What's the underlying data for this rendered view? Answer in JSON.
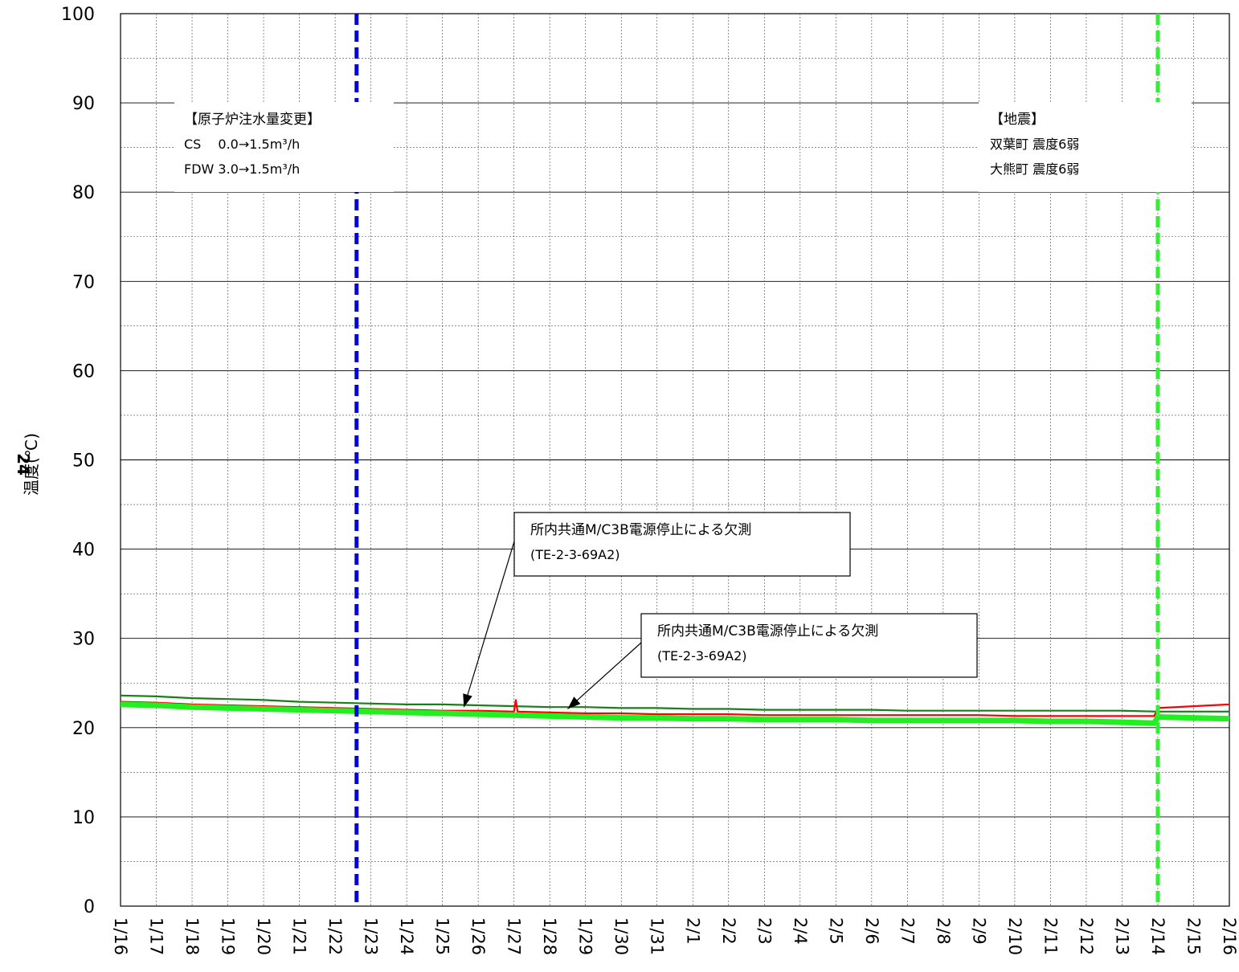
{
  "chart_data": {
    "type": "line",
    "ylabel_top": "24",
    "ylabel": "温度(℃)",
    "ylim": [
      0,
      100
    ],
    "y_major_ticks": [
      0,
      10,
      20,
      30,
      40,
      50,
      60,
      70,
      80,
      90,
      100
    ],
    "x_tick_labels": [
      "1/16",
      "1/17",
      "1/18",
      "1/19",
      "1/20",
      "1/21",
      "1/22",
      "1/23",
      "1/24",
      "1/25",
      "1/26",
      "1/27",
      "1/28",
      "1/29",
      "1/30",
      "1/31",
      "2/1",
      "2/2",
      "2/3",
      "2/4",
      "2/5",
      "2/6",
      "2/7",
      "2/8",
      "2/9",
      "2/10",
      "2/11",
      "2/12",
      "2/13",
      "2/14",
      "2/15",
      "2/16"
    ],
    "xlim_days": [
      0,
      31
    ],
    "grid": true,
    "series": [
      {
        "color": "#1a7f1a",
        "style": "thin",
        "points": [
          [
            0,
            23.6
          ],
          [
            1,
            23.5
          ],
          [
            2,
            23.3
          ],
          [
            3,
            23.2
          ],
          [
            4,
            23.1
          ],
          [
            5,
            22.9
          ],
          [
            6,
            22.8
          ],
          [
            7,
            22.7
          ],
          [
            8,
            22.6
          ],
          [
            9,
            22.6
          ],
          [
            10,
            22.5
          ],
          [
            11,
            22.4
          ],
          [
            12,
            22.3
          ],
          [
            13,
            22.3
          ],
          [
            14,
            22.2
          ],
          [
            15,
            22.2
          ],
          [
            16,
            22.1
          ],
          [
            17,
            22.1
          ],
          [
            18,
            22.0
          ],
          [
            19,
            22.0
          ],
          [
            20,
            22.0
          ],
          [
            21,
            22.0
          ],
          [
            22,
            21.9
          ],
          [
            23,
            21.9
          ],
          [
            24,
            21.9
          ],
          [
            25,
            21.9
          ],
          [
            26,
            21.9
          ],
          [
            27,
            21.9
          ],
          [
            28,
            21.9
          ],
          [
            29,
            21.8
          ],
          [
            30,
            21.8
          ],
          [
            31,
            21.8
          ]
        ]
      },
      {
        "color": "#ff0000",
        "style": "thin",
        "points": [
          [
            0,
            22.9
          ],
          [
            1,
            22.8
          ],
          [
            2,
            22.6
          ],
          [
            3,
            22.5
          ],
          [
            4,
            22.4
          ],
          [
            5,
            22.3
          ],
          [
            6,
            22.2
          ],
          [
            7,
            22.1
          ],
          [
            8,
            22.0
          ],
          [
            9,
            21.9
          ],
          [
            10,
            21.9
          ],
          [
            11,
            21.8
          ],
          [
            11.05,
            23.1
          ],
          [
            11.1,
            21.8
          ],
          [
            12,
            21.7
          ],
          [
            13,
            21.6
          ],
          [
            14,
            21.6
          ],
          [
            15,
            21.5
          ],
          [
            16,
            21.5
          ],
          [
            17,
            21.5
          ],
          [
            18,
            21.4
          ],
          [
            19,
            21.4
          ],
          [
            20,
            21.4
          ],
          [
            21,
            21.4
          ],
          [
            22,
            21.4
          ],
          [
            23,
            21.4
          ],
          [
            24,
            21.4
          ],
          [
            25,
            21.3
          ],
          [
            26,
            21.3
          ],
          [
            27,
            21.3
          ],
          [
            28,
            21.3
          ],
          [
            28.9,
            21.3
          ],
          [
            29,
            22.2
          ],
          [
            30,
            22.4
          ],
          [
            31,
            22.6
          ]
        ]
      },
      {
        "color": "#22ee22",
        "style": "thick",
        "points": [
          [
            0,
            22.6
          ],
          [
            1,
            22.5
          ],
          [
            2,
            22.3
          ],
          [
            3,
            22.2
          ],
          [
            4,
            22.1
          ],
          [
            5,
            22.0
          ],
          [
            6,
            21.9
          ],
          [
            7,
            21.8
          ],
          [
            8,
            21.7
          ],
          [
            9,
            21.6
          ],
          [
            10,
            21.5
          ],
          [
            11,
            21.4
          ],
          [
            12,
            21.3
          ],
          [
            13,
            21.2
          ],
          [
            14,
            21.1
          ],
          [
            15,
            21.1
          ],
          [
            16,
            21.0
          ],
          [
            17,
            21.0
          ],
          [
            18,
            20.9
          ],
          [
            19,
            20.9
          ],
          [
            20,
            20.9
          ],
          [
            21,
            20.8
          ],
          [
            22,
            20.8
          ],
          [
            23,
            20.8
          ],
          [
            24,
            20.8
          ],
          [
            25,
            20.8
          ],
          [
            26,
            20.7
          ],
          [
            27,
            20.7
          ],
          [
            28,
            20.6
          ],
          [
            28.9,
            20.5
          ],
          [
            29,
            21.2
          ],
          [
            30,
            21.1
          ],
          [
            31,
            21.0
          ]
        ]
      }
    ],
    "vlines": [
      {
        "x_day": 6.6,
        "color": "#0000dd"
      },
      {
        "x_day": 29,
        "color": "#33ee33"
      }
    ],
    "annotations": [
      {
        "id": "reactor-water-change",
        "lines": [
          "【原子炉注水量変更】",
          "CS　 0.0→1.5m³/h",
          "FDW  3.0→1.5m³/h"
        ]
      },
      {
        "id": "earthquake",
        "lines": [
          "【地震】",
          "双葉町  震度6弱",
          "大熊町  震度6弱"
        ]
      },
      {
        "id": "missing-data-1",
        "lines": [
          "所内共通M/C3B電源停止による欠測",
          "(TE-2-3-69A2)"
        ],
        "arrow_to": [
          9.6,
          22.3
        ]
      },
      {
        "id": "missing-data-2",
        "lines": [
          "所内共通M/C3B電源停止による欠測",
          "(TE-2-3-69A2)"
        ],
        "arrow_to": [
          12.5,
          22.1
        ]
      }
    ]
  }
}
